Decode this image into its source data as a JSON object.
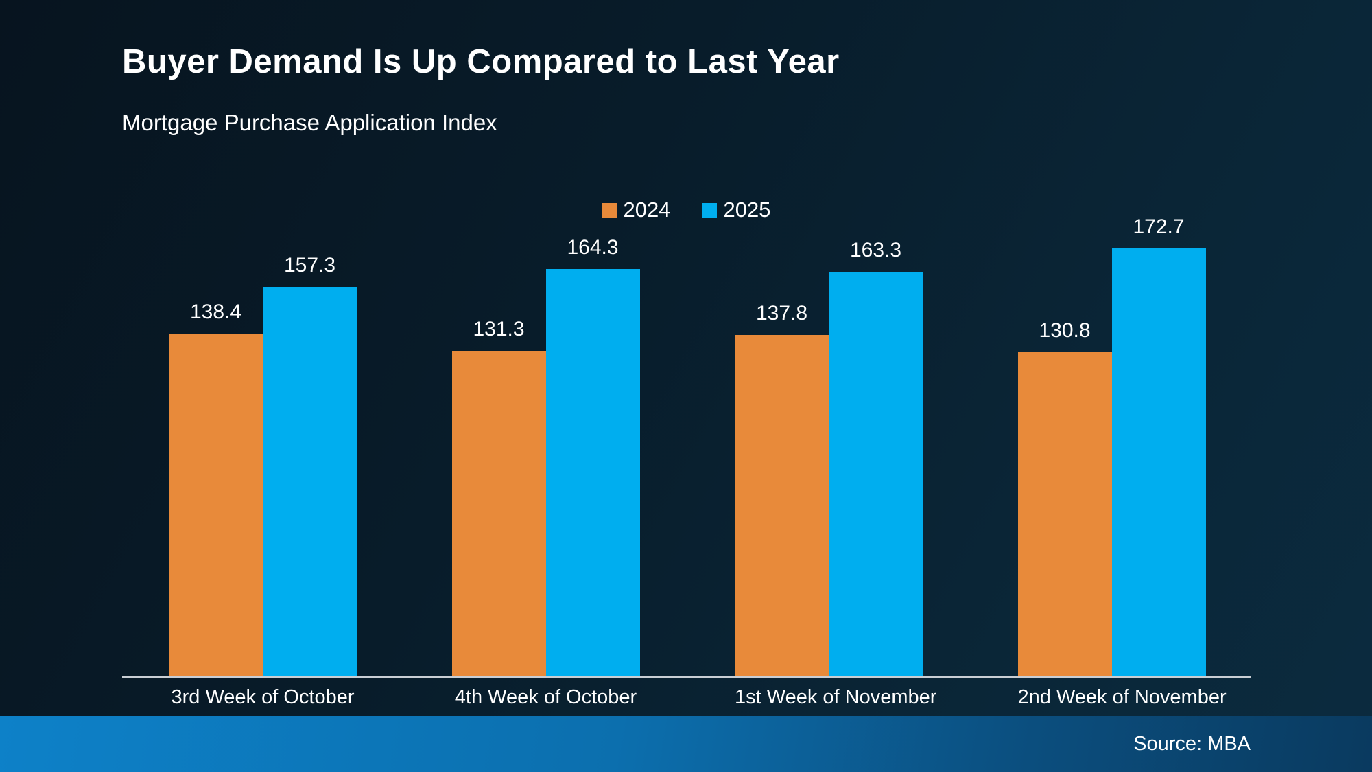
{
  "slide": {
    "title": "Buyer Demand Is Up Compared to Last Year",
    "subtitle": "Mortgage Purchase Application Index",
    "source": "Source: MBA"
  },
  "colors": {
    "background_top_left": "#081a26",
    "background_bottom_right": "#0a2a3d",
    "series_2024": "#e88a3a",
    "series_2025": "#00aeef",
    "axis_line": "#c9ced4",
    "text": "#ffffff",
    "footer_gradient_left": "#0d81c8",
    "footer_gradient_right": "#0a3a5f"
  },
  "chart_data": {
    "type": "bar",
    "title": "Buyer Demand Is Up Compared to Last Year",
    "subtitle": "Mortgage Purchase Application Index",
    "categories": [
      "3rd Week of October",
      "4th Week of October",
      "1st Week of November",
      "2nd Week of November"
    ],
    "series": [
      {
        "name": "2024",
        "color": "#e88a3a",
        "values": [
          138.4,
          131.3,
          137.8,
          130.8
        ]
      },
      {
        "name": "2025",
        "color": "#00aeef",
        "values": [
          157.3,
          164.3,
          163.3,
          172.7
        ]
      }
    ],
    "xlabel": "",
    "ylabel": "",
    "ylim": [
      0,
      180
    ],
    "grid": false,
    "legend_position": "top-center",
    "value_labels": true,
    "source": "Source: MBA"
  }
}
